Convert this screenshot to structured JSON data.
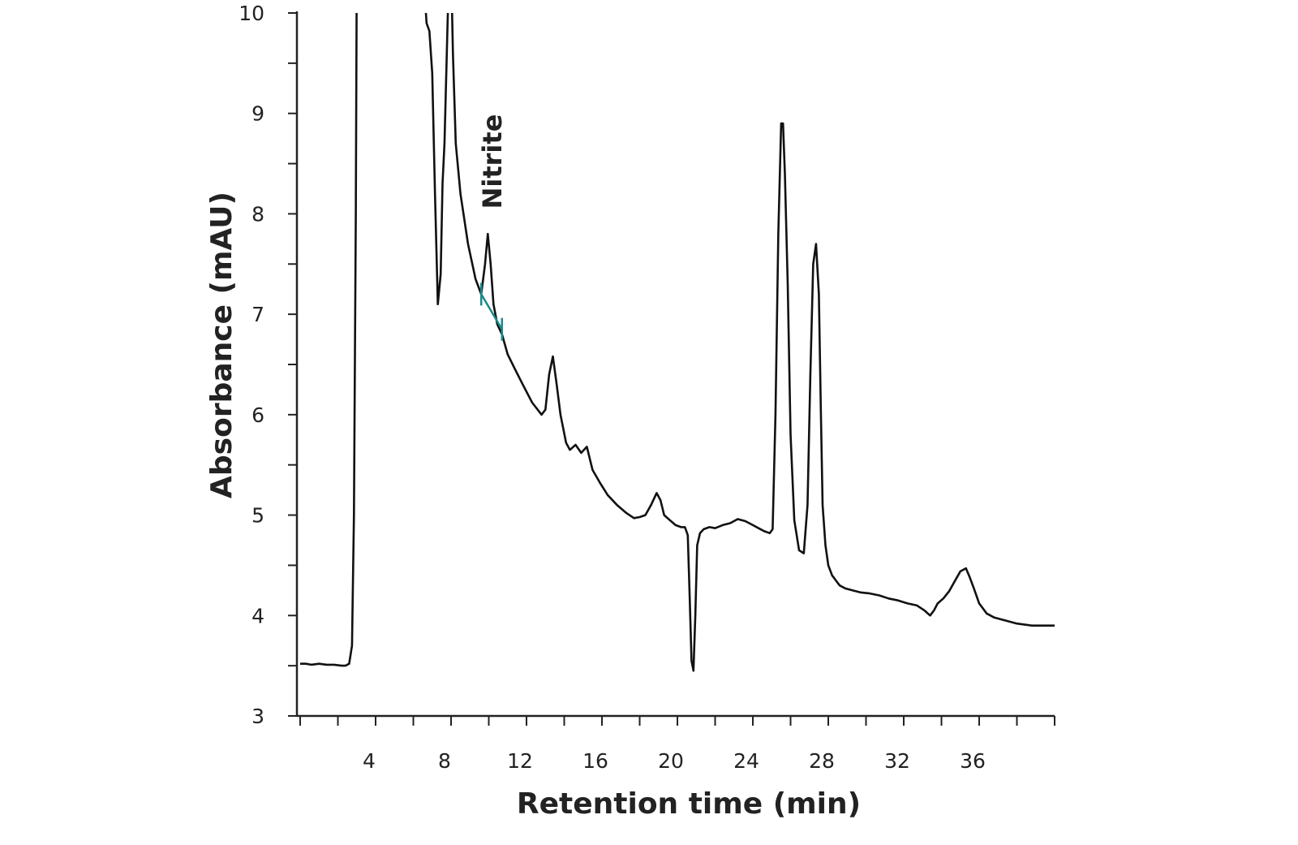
{
  "chart_data": {
    "type": "line",
    "title": "",
    "xlabel": "Retention time (min)",
    "ylabel": "Absorbance (mAU)",
    "xlim": [
      0,
      40
    ],
    "ylim": [
      3,
      10
    ],
    "x_ticks": [
      4,
      8,
      12,
      16,
      20,
      24,
      28,
      32,
      36
    ],
    "y_ticks": [
      3,
      4,
      5,
      6,
      7,
      8,
      9,
      10
    ],
    "grid": false,
    "colors": {
      "trace": "#111111",
      "baseline": "#1a8a8a",
      "axis": "#222222"
    },
    "series": [
      {
        "x": [
          0.0,
          0.3,
          0.6,
          1.0,
          1.4,
          1.8,
          2.2,
          2.4,
          2.6,
          2.75,
          2.85,
          2.95,
          3.0,
          3.1,
          6.5,
          6.7,
          6.85,
          7.0,
          7.15,
          7.3,
          7.45,
          7.55,
          7.65,
          7.8,
          7.9,
          8.0,
          8.1,
          8.25,
          8.5,
          8.9,
          9.3,
          9.6,
          9.8,
          9.95,
          10.1,
          10.25,
          10.45,
          10.7,
          11.0,
          11.4,
          11.8,
          12.3,
          12.8,
          13.0,
          13.2,
          13.4,
          13.6,
          13.8,
          14.1,
          14.3,
          14.6,
          14.9,
          15.2,
          15.5,
          15.9,
          16.3,
          16.8,
          17.3,
          17.7,
          18.0,
          18.3,
          18.6,
          18.9,
          19.1,
          19.3,
          19.6,
          19.9,
          20.2,
          20.4,
          20.55,
          20.65,
          20.75,
          20.85,
          20.95,
          21.05,
          21.2,
          21.4,
          21.7,
          22.0,
          22.4,
          22.8,
          23.2,
          23.6,
          24.0,
          24.3,
          24.6,
          24.9,
          25.05,
          25.2,
          25.35,
          25.5,
          25.6,
          25.7,
          25.85,
          26.0,
          26.2,
          26.45,
          26.7,
          26.9,
          27.05,
          27.2,
          27.35,
          27.5,
          27.6,
          27.7,
          27.85,
          28.0,
          28.2,
          28.4,
          28.6,
          28.9,
          29.3,
          29.7,
          30.2,
          30.7,
          31.2,
          31.7,
          32.2,
          32.7,
          33.1,
          33.4,
          33.6,
          33.8,
          34.1,
          34.4,
          34.7,
          35.0,
          35.3,
          35.5,
          35.7,
          36.0,
          36.4,
          36.8,
          37.2,
          37.6,
          38.0,
          38.4,
          38.8,
          39.2,
          39.6,
          40.0
        ],
        "y": [
          3.52,
          3.52,
          3.51,
          3.52,
          3.51,
          3.51,
          3.5,
          3.5,
          3.52,
          3.7,
          5.0,
          8.0,
          10.5,
          10.5,
          10.5,
          9.9,
          9.82,
          9.4,
          8.2,
          7.1,
          7.4,
          8.3,
          8.7,
          9.8,
          10.5,
          10.5,
          9.6,
          8.7,
          8.2,
          7.7,
          7.35,
          7.2,
          7.5,
          7.8,
          7.5,
          7.1,
          6.9,
          6.8,
          6.6,
          6.45,
          6.3,
          6.12,
          6.0,
          6.05,
          6.4,
          6.58,
          6.3,
          6.0,
          5.72,
          5.65,
          5.7,
          5.62,
          5.68,
          5.45,
          5.32,
          5.2,
          5.1,
          5.02,
          4.97,
          4.98,
          5.0,
          5.1,
          5.22,
          5.15,
          5.0,
          4.95,
          4.9,
          4.88,
          4.88,
          4.8,
          4.2,
          3.55,
          3.45,
          4.0,
          4.7,
          4.82,
          4.86,
          4.88,
          4.87,
          4.9,
          4.92,
          4.96,
          4.94,
          4.9,
          4.87,
          4.84,
          4.82,
          4.86,
          6.0,
          7.8,
          8.9,
          8.9,
          8.4,
          7.3,
          5.8,
          4.95,
          4.65,
          4.62,
          5.1,
          6.4,
          7.5,
          7.7,
          7.2,
          6.1,
          5.1,
          4.7,
          4.5,
          4.4,
          4.35,
          4.3,
          4.27,
          4.25,
          4.23,
          4.22,
          4.2,
          4.17,
          4.15,
          4.12,
          4.1,
          4.05,
          4.0,
          4.05,
          4.12,
          4.17,
          4.24,
          4.34,
          4.44,
          4.47,
          4.38,
          4.28,
          4.12,
          4.02,
          3.98,
          3.96,
          3.94,
          3.92,
          3.91,
          3.9,
          3.9,
          3.9,
          3.9
        ]
      }
    ],
    "annotations": [
      {
        "text": "Nitrite",
        "x": 10.0,
        "y": 7.8,
        "baseline_from": [
          9.6,
          7.2
        ],
        "baseline_to": [
          10.7,
          6.85
        ]
      }
    ]
  }
}
